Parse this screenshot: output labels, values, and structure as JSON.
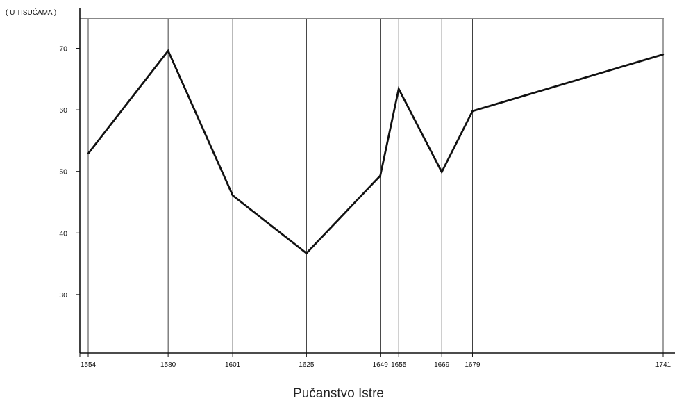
{
  "chart_data": {
    "type": "line",
    "title": "",
    "ylabel": "( U TISUĆAMA )",
    "xlabel": "",
    "caption": "Pučanstvo Istre",
    "x": [
      1554,
      1580,
      1601,
      1625,
      1649,
      1655,
      1669,
      1679,
      1741
    ],
    "x_tick_labels": [
      "1554",
      "1580",
      "1601",
      "1625",
      "1649",
      "1655",
      "1669",
      "1679",
      "1741"
    ],
    "series": [
      {
        "values": [
          52.9,
          69.6,
          46.1,
          36.7,
          49.3,
          63.4,
          49.9,
          59.8,
          69.0
        ]
      }
    ],
    "y_ticks": [
      30,
      40,
      50,
      60,
      70
    ],
    "y_tick_labels": [
      "30",
      "40",
      "50",
      "60",
      "70"
    ],
    "ylim": [
      20.5,
      74.8
    ],
    "xlim": [
      1552,
      1741
    ],
    "vertical_gridlines_at_x": true,
    "horizontal_grid": false,
    "line_color": "#111111"
  }
}
